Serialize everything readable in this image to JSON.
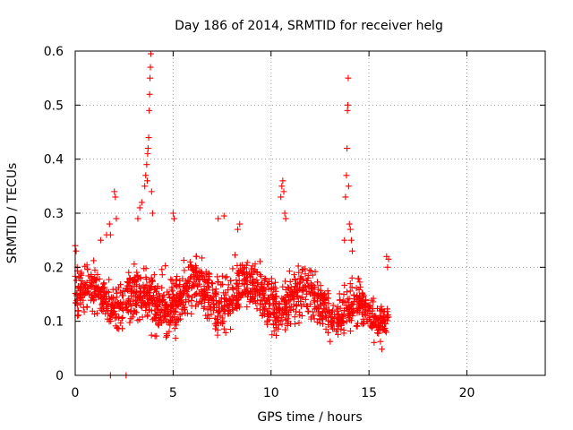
{
  "chart_data": {
    "type": "scatter",
    "title": "Day 186 of 2014, SRMTID for receiver helg",
    "xlabel": "GPS time / hours",
    "ylabel": "SRMTID / TECUs",
    "xlim": [
      0,
      24
    ],
    "ylim": [
      0,
      0.6
    ],
    "x_ticks": [
      0,
      5,
      10,
      15,
      20
    ],
    "x_tick_labels": [
      "0",
      "5",
      "10",
      "15",
      "20"
    ],
    "y_ticks": [
      0,
      0.1,
      0.2,
      0.3,
      0.4,
      0.5,
      0.6
    ],
    "y_tick_labels": [
      "0",
      "0.1",
      "0.2",
      "0.3",
      "0.4",
      "0.5",
      "0.6"
    ],
    "grid": true,
    "marker": "+",
    "series": [
      {
        "name": "SRMTID",
        "color": "#ff0000",
        "segments": [
          {
            "t0": 0.0,
            "t1": 3.2,
            "center": 0.145,
            "spread": 0.045,
            "count": 300
          },
          {
            "t0": 3.2,
            "t1": 4.3,
            "center": 0.13,
            "spread": 0.05,
            "count": 120
          },
          {
            "t0": 4.3,
            "t1": 9.5,
            "center": 0.15,
            "spread": 0.05,
            "count": 520
          },
          {
            "t0": 9.5,
            "t1": 13.0,
            "center": 0.14,
            "spread": 0.05,
            "count": 330
          },
          {
            "t0": 13.0,
            "t1": 16.0,
            "center": 0.115,
            "spread": 0.04,
            "count": 260
          }
        ],
        "points": [
          {
            "x": 0.0,
            "y": 0.24
          },
          {
            "x": 0.05,
            "y": 0.23
          },
          {
            "x": 0.1,
            "y": 0.2
          },
          {
            "x": 1.3,
            "y": 0.25
          },
          {
            "x": 1.6,
            "y": 0.26
          },
          {
            "x": 1.75,
            "y": 0.28
          },
          {
            "x": 1.8,
            "y": 0.26
          },
          {
            "x": 2.0,
            "y": 0.34
          },
          {
            "x": 2.05,
            "y": 0.33
          },
          {
            "x": 2.1,
            "y": 0.29
          },
          {
            "x": 3.2,
            "y": 0.29
          },
          {
            "x": 3.3,
            "y": 0.31
          },
          {
            "x": 3.4,
            "y": 0.32
          },
          {
            "x": 3.55,
            "y": 0.35
          },
          {
            "x": 3.6,
            "y": 0.37
          },
          {
            "x": 3.65,
            "y": 0.39
          },
          {
            "x": 3.7,
            "y": 0.41
          },
          {
            "x": 3.72,
            "y": 0.42
          },
          {
            "x": 3.75,
            "y": 0.44
          },
          {
            "x": 3.78,
            "y": 0.49
          },
          {
            "x": 3.8,
            "y": 0.52
          },
          {
            "x": 3.82,
            "y": 0.55
          },
          {
            "x": 3.84,
            "y": 0.57
          },
          {
            "x": 3.86,
            "y": 0.595
          },
          {
            "x": 3.68,
            "y": 0.36
          },
          {
            "x": 3.9,
            "y": 0.34
          },
          {
            "x": 3.95,
            "y": 0.3
          },
          {
            "x": 5.0,
            "y": 0.3
          },
          {
            "x": 5.05,
            "y": 0.29
          },
          {
            "x": 7.3,
            "y": 0.29
          },
          {
            "x": 7.6,
            "y": 0.295
          },
          {
            "x": 8.3,
            "y": 0.27
          },
          {
            "x": 8.4,
            "y": 0.28
          },
          {
            "x": 10.5,
            "y": 0.33
          },
          {
            "x": 10.55,
            "y": 0.35
          },
          {
            "x": 10.6,
            "y": 0.36
          },
          {
            "x": 10.65,
            "y": 0.34
          },
          {
            "x": 10.7,
            "y": 0.3
          },
          {
            "x": 10.75,
            "y": 0.29
          },
          {
            "x": 13.75,
            "y": 0.25
          },
          {
            "x": 13.8,
            "y": 0.33
          },
          {
            "x": 13.85,
            "y": 0.37
          },
          {
            "x": 13.88,
            "y": 0.42
          },
          {
            "x": 13.9,
            "y": 0.49
          },
          {
            "x": 13.92,
            "y": 0.5
          },
          {
            "x": 13.94,
            "y": 0.55
          },
          {
            "x": 13.96,
            "y": 0.35
          },
          {
            "x": 14.0,
            "y": 0.28
          },
          {
            "x": 14.05,
            "y": 0.27
          },
          {
            "x": 14.1,
            "y": 0.25
          },
          {
            "x": 14.15,
            "y": 0.23
          },
          {
            "x": 15.9,
            "y": 0.22
          },
          {
            "x": 15.95,
            "y": 0.2
          },
          {
            "x": 16.0,
            "y": 0.215
          },
          {
            "x": 1.8,
            "y": 0.0
          },
          {
            "x": 2.6,
            "y": 0.0
          }
        ]
      }
    ]
  }
}
